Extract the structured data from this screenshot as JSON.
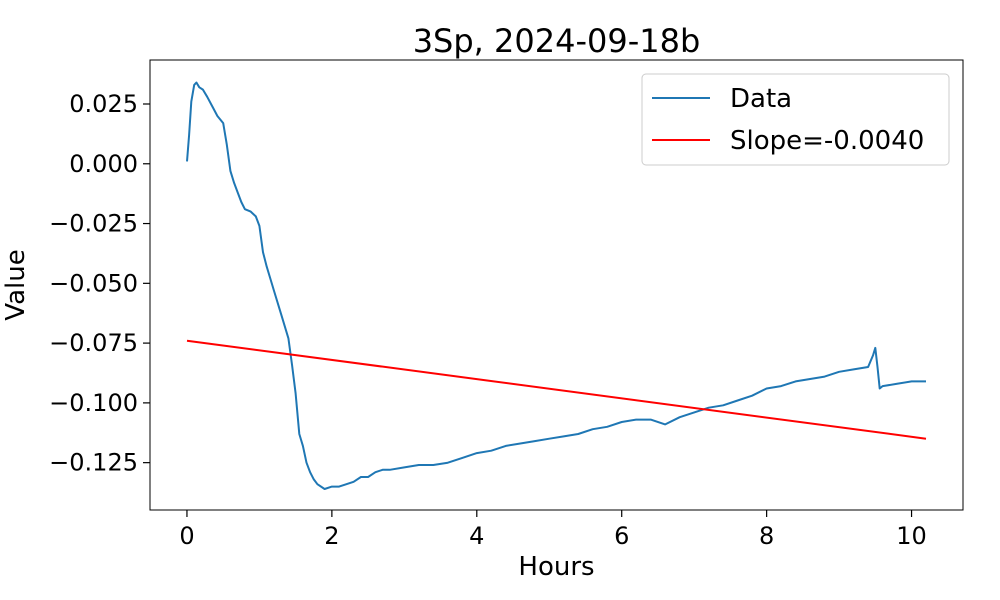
{
  "chart_data": {
    "type": "line",
    "title": "3Sp, 2024-09-18b",
    "xlabel": "Hours",
    "ylabel": "Value",
    "xlim": [
      -0.51,
      10.71
    ],
    "ylim": [
      -0.1448,
      0.0434
    ],
    "xticks": [
      0,
      2,
      4,
      6,
      8,
      10
    ],
    "xtick_labels": [
      "0",
      "2",
      "4",
      "6",
      "8",
      "10"
    ],
    "yticks": [
      0.025,
      0.0,
      -0.025,
      -0.05,
      -0.075,
      -0.1,
      -0.125
    ],
    "ytick_labels": [
      "0.025",
      "0.000",
      "−0.025",
      "−0.050",
      "−0.075",
      "−0.100",
      "−0.125"
    ],
    "grid": false,
    "legend_position": "top-right",
    "series": [
      {
        "name": "Data",
        "color": "#1f77b4",
        "x": [
          0.0,
          0.03,
          0.06,
          0.1,
          0.13,
          0.17,
          0.22,
          0.28,
          0.35,
          0.42,
          0.5,
          0.55,
          0.6,
          0.65,
          0.7,
          0.75,
          0.8,
          0.88,
          0.95,
          1.0,
          1.05,
          1.1,
          1.15,
          1.2,
          1.3,
          1.4,
          1.45,
          1.5,
          1.55,
          1.6,
          1.65,
          1.7,
          1.75,
          1.8,
          1.9,
          2.0,
          2.05,
          2.1,
          2.2,
          2.3,
          2.4,
          2.5,
          2.6,
          2.7,
          2.8,
          3.0,
          3.2,
          3.4,
          3.6,
          3.8,
          4.0,
          4.2,
          4.4,
          4.6,
          4.8,
          5.0,
          5.2,
          5.4,
          5.6,
          5.8,
          6.0,
          6.2,
          6.4,
          6.6,
          6.8,
          7.0,
          7.2,
          7.4,
          7.6,
          7.8,
          8.0,
          8.2,
          8.4,
          8.6,
          8.8,
          9.0,
          9.2,
          9.4,
          9.47,
          9.5,
          9.53,
          9.56,
          9.6,
          9.8,
          10.0,
          10.2
        ],
        "y": [
          0.001,
          0.012,
          0.026,
          0.033,
          0.034,
          0.032,
          0.031,
          0.028,
          0.024,
          0.02,
          0.017,
          0.008,
          -0.003,
          -0.008,
          -0.012,
          -0.016,
          -0.019,
          -0.02,
          -0.022,
          -0.026,
          -0.037,
          -0.043,
          -0.048,
          -0.053,
          -0.063,
          -0.073,
          -0.084,
          -0.096,
          -0.113,
          -0.118,
          -0.125,
          -0.129,
          -0.132,
          -0.134,
          -0.136,
          -0.135,
          -0.135,
          -0.135,
          -0.134,
          -0.133,
          -0.131,
          -0.131,
          -0.129,
          -0.128,
          -0.128,
          -0.127,
          -0.126,
          -0.126,
          -0.125,
          -0.123,
          -0.121,
          -0.12,
          -0.118,
          -0.117,
          -0.116,
          -0.115,
          -0.114,
          -0.113,
          -0.111,
          -0.11,
          -0.108,
          -0.107,
          -0.107,
          -0.109,
          -0.106,
          -0.104,
          -0.102,
          -0.101,
          -0.099,
          -0.097,
          -0.094,
          -0.093,
          -0.091,
          -0.09,
          -0.089,
          -0.087,
          -0.086,
          -0.085,
          -0.08,
          -0.077,
          -0.085,
          -0.094,
          -0.093,
          -0.092,
          -0.091,
          -0.091
        ]
      },
      {
        "name": "Slope=-0.0040",
        "color": "#ff0000",
        "x": [
          0.0,
          10.2
        ],
        "y": [
          -0.074,
          -0.115
        ]
      }
    ]
  }
}
